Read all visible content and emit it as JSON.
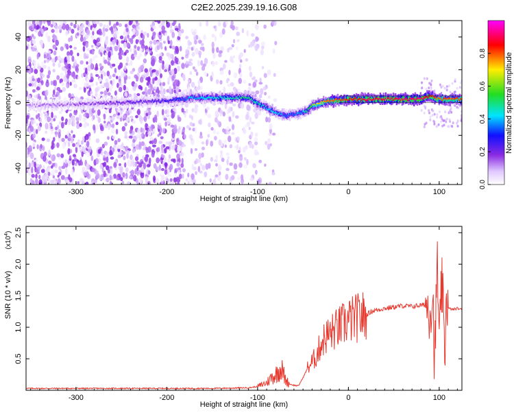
{
  "figure_title": "C2E2.2025.239.19.16.G08",
  "colors": {
    "snr_line": "#e8392f",
    "cmap_low": "#ffffff",
    "cmap_purple": "#8a2be2",
    "cmap_blue": "#1010ff",
    "cmap_cyan": "#00e5ff",
    "cmap_green": "#22dd22",
    "cmap_yellow": "#ffee00",
    "cmap_red": "#ff0000",
    "cmap_magenta": "#ff00ff"
  },
  "chart_data": [
    {
      "type": "heatmap",
      "name": "spectrogram",
      "title": "C2E2.2025.239.19.16.G08",
      "xlabel": "Height of straight line (km)",
      "ylabel": "Frequency (Hz)",
      "xlim": [
        -355,
        125
      ],
      "ylim": [
        -50,
        50
      ],
      "x_ticks": [
        -300,
        -200,
        -100,
        0,
        100
      ],
      "x_tick_labels": [
        "-300",
        "-200",
        "-100",
        "0",
        "100"
      ],
      "y_ticks": [
        -40,
        -20,
        0,
        20,
        40
      ],
      "y_tick_labels": [
        "-40",
        "-20",
        "0",
        "20",
        "40"
      ],
      "colorbar": {
        "label": "Normalized spectral amplitude",
        "range": [
          0,
          1
        ],
        "ticks": [
          0.0,
          0.2,
          0.4,
          0.6,
          0.8
        ],
        "tick_labels": [
          "0.0",
          "0.2",
          "0.4",
          "0.6",
          "0.8"
        ]
      },
      "ridge": {
        "x": [
          -355,
          -300,
          -250,
          -200,
          -170,
          -140,
          -110,
          -95,
          -80,
          -70,
          -60,
          -50,
          -45,
          -40,
          -30,
          -20,
          0,
          30,
          60,
          80,
          90,
          100,
          125
        ],
        "y": [
          -2,
          -1,
          0,
          1,
          3,
          3,
          3,
          -2,
          -6,
          -8,
          -7,
          -6,
          -5,
          -2,
          0,
          1,
          2,
          2,
          2,
          2,
          4,
          2,
          2
        ],
        "amplitude": [
          0.12,
          0.15,
          0.2,
          0.25,
          0.4,
          0.45,
          0.5,
          0.45,
          0.4,
          0.35,
          0.35,
          0.4,
          0.5,
          0.6,
          0.75,
          0.8,
          0.85,
          0.9,
          0.9,
          0.9,
          0.85,
          0.8,
          0.8
        ]
      },
      "noise_region_xlim": [
        -355,
        -100
      ]
    },
    {
      "type": "line",
      "name": "snr",
      "title": "",
      "xlabel": "Height of straight line (km)",
      "ylabel": "SNR (10 * v/v)",
      "y_multiplier_label": "(x10",
      "y_multiplier_exponent": "4",
      "y_multiplier_close": ")",
      "xlim": [
        -355,
        125
      ],
      "ylim": [
        0,
        2.6
      ],
      "x_ticks": [
        -300,
        -200,
        -100,
        0,
        100
      ],
      "x_tick_labels": [
        "-300",
        "-200",
        "-100",
        "0",
        "100"
      ],
      "y_ticks": [
        0.5,
        1.0,
        1.5,
        2.0,
        2.5
      ],
      "y_tick_labels": [
        "0.5",
        "1.0",
        "1.5",
        "2.0",
        "2.5"
      ],
      "series": [
        {
          "name": "SNR",
          "x": [
            -355,
            -300,
            -250,
            -200,
            -150,
            -110,
            -100,
            -90,
            -85,
            -80,
            -75,
            -72,
            -70,
            -65,
            -60,
            -55,
            -50,
            -45,
            -40,
            -35,
            -30,
            -25,
            -20,
            -10,
            0,
            10,
            20,
            25,
            30,
            40,
            50,
            60,
            70,
            80,
            85,
            90,
            93,
            95,
            98,
            100,
            103,
            106,
            108,
            110,
            115,
            120,
            125
          ],
          "y": [
            0.03,
            0.03,
            0.03,
            0.03,
            0.03,
            0.04,
            0.06,
            0.12,
            0.2,
            0.25,
            0.35,
            0.3,
            0.18,
            0.1,
            0.08,
            0.07,
            0.2,
            0.35,
            0.45,
            0.55,
            0.75,
            0.85,
            0.9,
            1.0,
            1.1,
            1.15,
            1.2,
            1.25,
            1.27,
            1.3,
            1.32,
            1.34,
            1.33,
            1.35,
            1.35,
            1.3,
            1.5,
            0.4,
            2.1,
            0.6,
            1.8,
            0.5,
            1.6,
            1.3,
            1.28,
            1.3,
            1.28
          ]
        }
      ]
    }
  ]
}
